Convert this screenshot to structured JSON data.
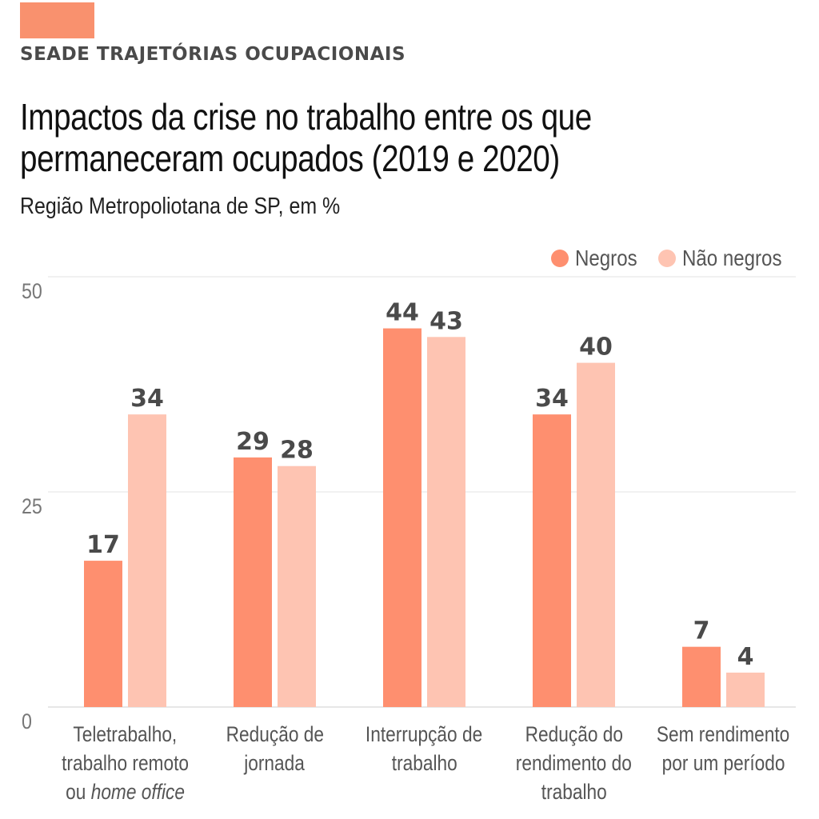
{
  "brand": {
    "name": "SEADE TRAJETÓRIAS OCUPACIONAIS",
    "color": "#f9916e"
  },
  "title_line1": "Impactos da crise no trabalho entre os que",
  "title_line2": "permaneceram ocupados (2019 e 2020)",
  "subtitle": "Região Metropoliotana de SP, em %",
  "legend": [
    {
      "label": "Negros",
      "color": "#fe8f6f"
    },
    {
      "label": "Não negros",
      "color": "#fec4b2"
    }
  ],
  "categories_display": [
    {
      "lines": [
        {
          "text": "Teletrabalho,"
        },
        {
          "text": "trabalho remoto"
        },
        {
          "pre": "ou ",
          "ital": "home office"
        }
      ]
    },
    {
      "lines": [
        {
          "text": "Redução de"
        },
        {
          "text": "jornada"
        }
      ]
    },
    {
      "lines": [
        {
          "text": "Interrupção de"
        },
        {
          "text": "trabalho"
        }
      ]
    },
    {
      "lines": [
        {
          "text": "Redução do"
        },
        {
          "text": "rendimento do"
        },
        {
          "text": "trabalho"
        }
      ]
    },
    {
      "lines": [
        {
          "text": "Sem rendimento"
        },
        {
          "text": "por um período"
        }
      ]
    }
  ],
  "chart_data": {
    "type": "bar",
    "title": "Impactos da crise no trabalho entre os que permaneceram ocupados (2019 e 2020)",
    "subtitle": "Região Metropoliotana de SP, em %",
    "categories": [
      "Teletrabalho, trabalho remoto ou home office",
      "Redução de jornada",
      "Interrupção de trabalho",
      "Redução do rendimento do trabalho",
      "Sem rendimento por um período"
    ],
    "series": [
      {
        "name": "Negros",
        "values": [
          17,
          29,
          44,
          34,
          7
        ],
        "color": "#fe8f6f"
      },
      {
        "name": "Não negros",
        "values": [
          34,
          28,
          43,
          40,
          4
        ],
        "color": "#fec4b2"
      }
    ],
    "ylim": [
      0,
      50
    ],
    "yticks": [
      0,
      25,
      50
    ],
    "grid": true,
    "legend_position": "top-right",
    "data_labels": true
  }
}
